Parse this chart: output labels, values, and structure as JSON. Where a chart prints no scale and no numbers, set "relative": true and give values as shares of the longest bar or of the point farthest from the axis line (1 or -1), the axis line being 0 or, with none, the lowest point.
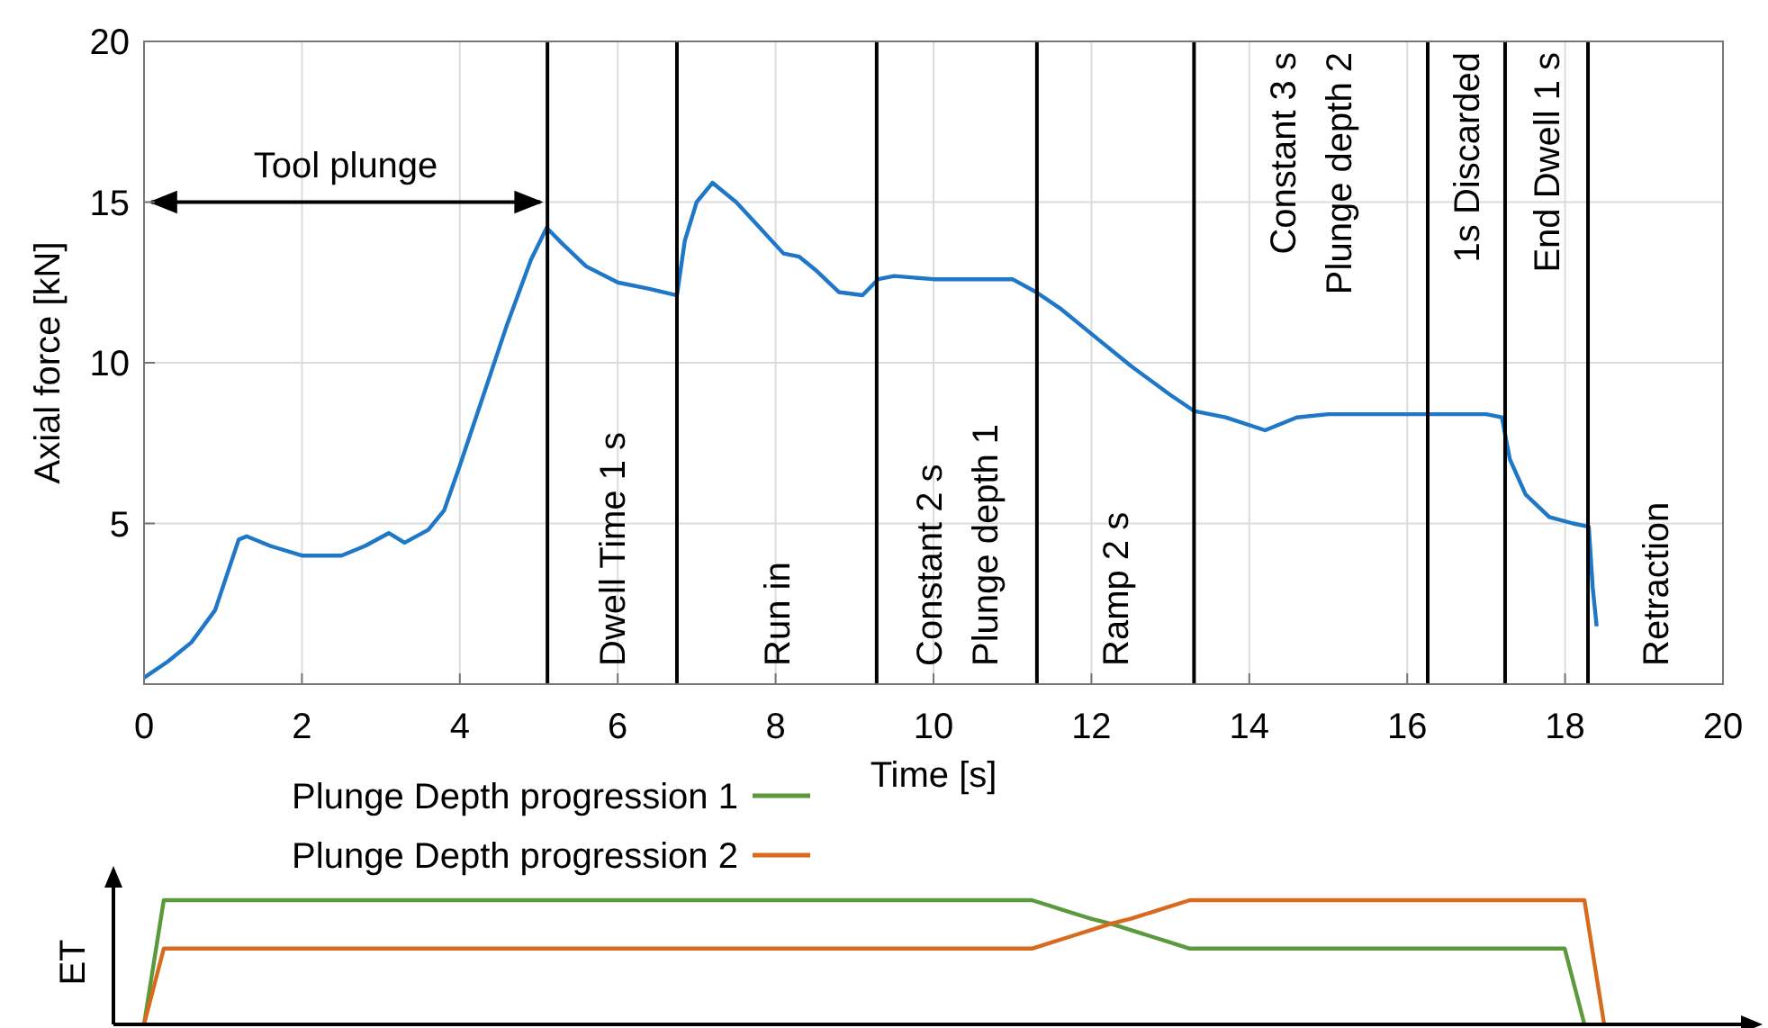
{
  "chart_data": [
    {
      "type": "line",
      "xlabel": "Time [s]",
      "ylabel": "Axial force [kN]",
      "xlim": [
        0,
        20
      ],
      "ylim": [
        0,
        20
      ],
      "xticks": [
        0,
        2,
        4,
        6,
        8,
        10,
        12,
        14,
        16,
        18,
        20
      ],
      "yticks": [
        {
          "value": 0,
          "label": null
        },
        5,
        10,
        15,
        20
      ],
      "grid": true,
      "marker": "none",
      "line_style": "solid",
      "series": [
        {
          "color": "#1f77c8",
          "x": [
            0,
            0.3,
            0.6,
            0.9,
            1.2,
            1.3,
            1.6,
            2,
            2.5,
            2.8,
            3.1,
            3.3,
            3.6,
            3.8,
            4.0,
            4.3,
            4.6,
            4.9,
            5.1,
            5.3,
            5.6,
            6.0,
            6.4,
            6.75,
            6.85,
            7.0,
            7.2,
            7.5,
            7.8,
            8.1,
            8.3,
            8.5,
            8.8,
            9.1,
            9.3,
            9.5,
            10,
            10.5,
            11,
            11.3,
            11.6,
            12,
            12.5,
            13,
            13.3,
            13.7,
            14.2,
            14.6,
            15,
            15.5,
            16,
            16.5,
            17,
            17.2,
            17.3,
            17.5,
            17.8,
            18.1,
            18.3,
            18.35,
            18.4
          ],
          "values": [
            0.2,
            0.7,
            1.3,
            2.3,
            4.5,
            4.6,
            4.3,
            4.0,
            4.0,
            4.3,
            4.7,
            4.4,
            4.8,
            5.4,
            6.8,
            9.0,
            11.2,
            13.2,
            14.2,
            13.7,
            13.0,
            12.5,
            12.3,
            12.1,
            13.8,
            15.0,
            15.6,
            15.0,
            14.2,
            13.4,
            13.3,
            12.9,
            12.2,
            12.1,
            12.6,
            12.7,
            12.6,
            12.6,
            12.6,
            12.2,
            11.7,
            10.9,
            9.9,
            9.0,
            8.5,
            8.3,
            7.9,
            8.3,
            8.4,
            8.4,
            8.4,
            8.4,
            8.4,
            8.3,
            7.0,
            5.9,
            5.2,
            5.0,
            4.9,
            3.0,
            1.8
          ]
        }
      ],
      "ref_lines": [
        {
          "axis": "x",
          "value": 5.11,
          "label": "Dwell Time 1 s",
          "color": "#000000"
        },
        {
          "axis": "x",
          "value": 6.75,
          "label": "Run in",
          "color": "#000000"
        },
        {
          "axis": "x",
          "value": 9.28,
          "label": "Constant 2 s\nPlunge depth 1",
          "color": "#000000"
        },
        {
          "axis": "x",
          "value": 11.31,
          "label": "Ramp 2 s",
          "color": "#000000"
        },
        {
          "axis": "x",
          "value": 13.3,
          "label": "Constant 3 s\nPlunge depth 2",
          "color": "#000000"
        },
        {
          "axis": "x",
          "value": 16.26,
          "label": "1s Discarded",
          "color": "#000000"
        },
        {
          "axis": "x",
          "value": 17.24,
          "label": "End Dwell 1 s",
          "color": "#000000"
        },
        {
          "axis": "x",
          "value": 18.29,
          "label": "Retraction",
          "color": "#000000"
        }
      ],
      "annotations": [
        "Tool plunge"
      ]
    },
    {
      "type": "line",
      "ylabel": "ET",
      "relative": true,
      "categories": [
        null,
        null,
        null,
        null,
        null,
        null,
        null,
        null,
        null,
        null,
        null,
        null,
        null,
        null,
        null,
        null,
        null,
        null,
        null,
        null,
        null,
        null,
        null,
        null,
        null,
        null,
        null,
        null,
        null,
        null,
        null,
        null,
        null,
        null,
        null,
        null,
        null,
        null,
        null,
        null,
        null,
        null,
        null,
        null,
        null,
        null,
        null,
        null,
        null,
        null,
        null,
        null,
        null,
        null,
        null,
        null,
        null,
        null,
        null,
        null,
        null,
        null,
        null,
        null,
        null,
        null,
        null,
        null,
        null,
        null,
        null,
        null,
        null,
        null,
        null
      ],
      "legend": "top left",
      "line_style": "solid",
      "marker": "none",
      "series": [
        {
          "name": "Plunge Depth progression 1",
          "color": "#5b9a3c",
          "values": [
            0,
            1,
            1,
            1,
            1,
            1,
            1,
            1,
            1,
            1,
            1,
            1,
            1,
            1,
            1,
            1,
            1,
            1,
            1,
            1,
            1,
            1,
            1,
            1,
            1,
            1,
            1,
            1,
            1,
            1,
            1,
            1,
            1,
            1,
            1,
            1,
            1,
            1,
            1,
            1,
            1,
            1,
            1,
            1,
            1,
            1,
            0.95,
            0.9,
            0.85,
            0.81,
            0.76,
            0.71,
            0.66,
            0.61,
            0.61,
            0.61,
            0.61,
            0.61,
            0.61,
            0.61,
            0.61,
            0.61,
            0.61,
            0.61,
            0.61,
            0.61,
            0.61,
            0.61,
            0.61,
            0.61,
            0.61,
            0.61,
            0.61,
            0,
            null
          ]
        },
        {
          "name": "Plunge Depth progression 2",
          "color": "#d86a1e",
          "values": [
            0,
            0.61,
            0.61,
            0.61,
            0.61,
            0.61,
            0.61,
            0.61,
            0.61,
            0.61,
            0.61,
            0.61,
            0.61,
            0.61,
            0.61,
            0.61,
            0.61,
            0.61,
            0.61,
            0.61,
            0.61,
            0.61,
            0.61,
            0.61,
            0.61,
            0.61,
            0.61,
            0.61,
            0.61,
            0.61,
            0.61,
            0.61,
            0.61,
            0.61,
            0.61,
            0.61,
            0.61,
            0.61,
            0.61,
            0.61,
            0.61,
            0.61,
            0.61,
            0.61,
            0.61,
            0.61,
            0.66,
            0.71,
            0.76,
            0.81,
            0.85,
            0.9,
            0.95,
            1,
            1,
            1,
            1,
            1,
            1,
            1,
            1,
            1,
            1,
            1,
            1,
            1,
            1,
            1,
            1,
            1,
            1,
            1,
            1,
            1,
            0
          ]
        }
      ]
    }
  ]
}
